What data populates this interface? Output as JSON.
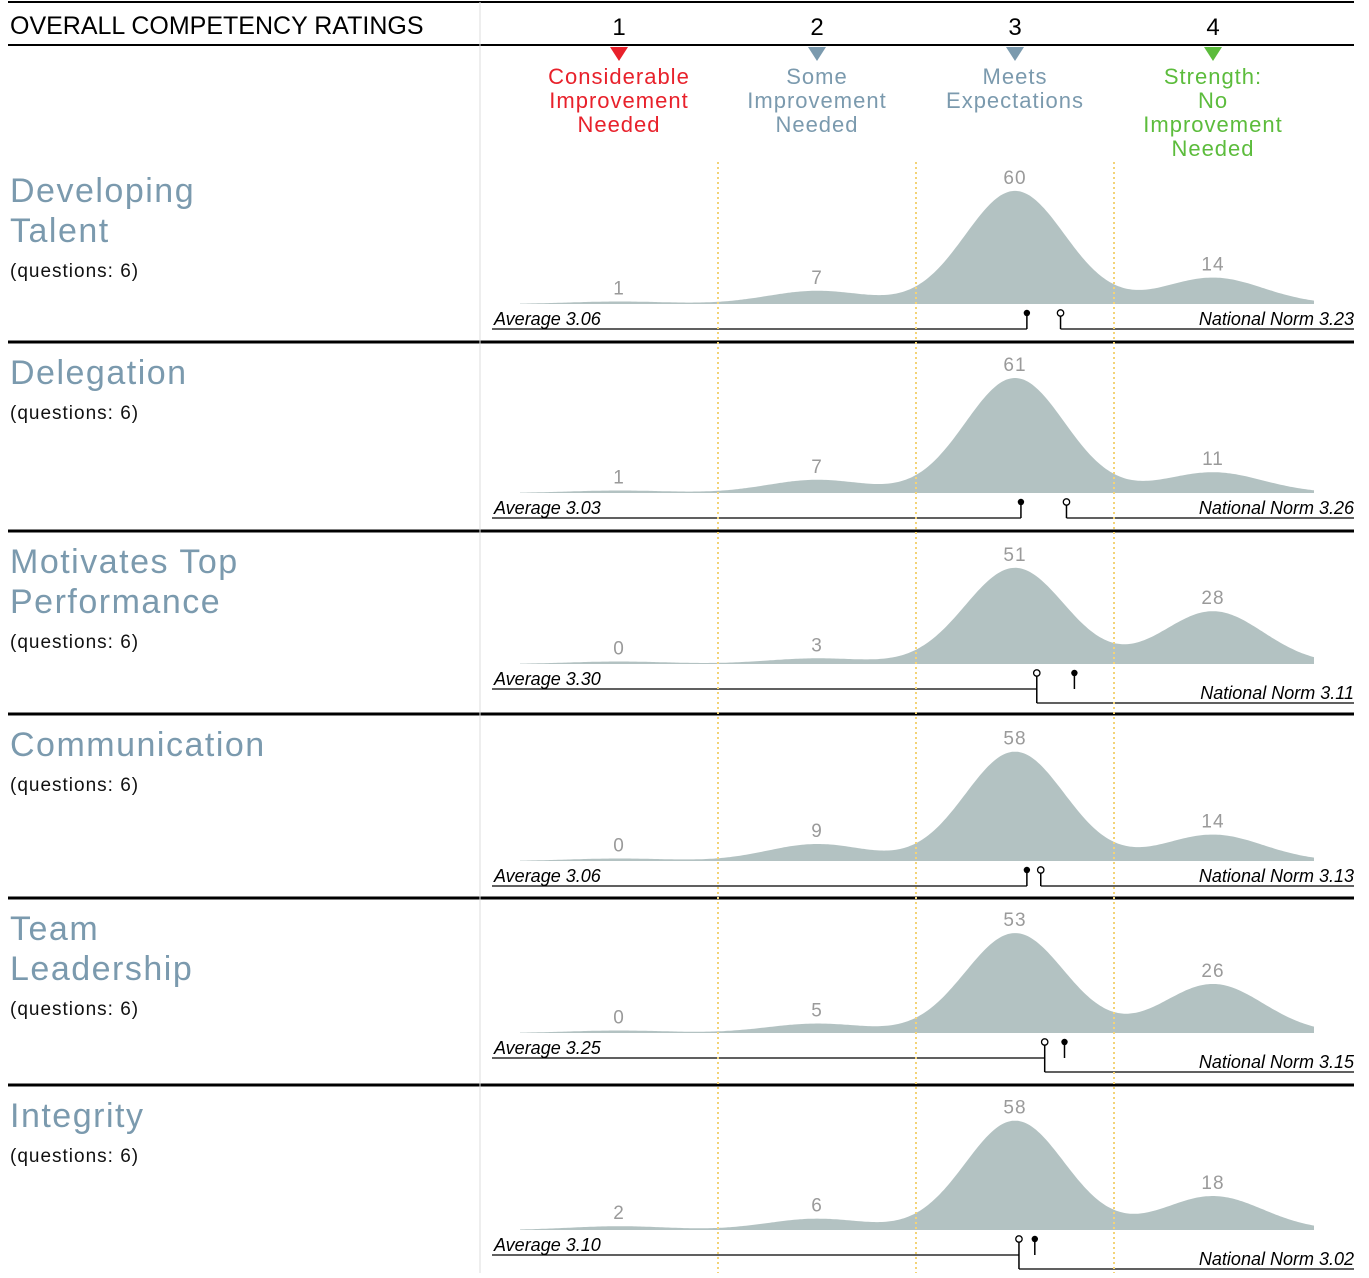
{
  "header": {
    "title": "OVERALL COMPETENCY RATINGS"
  },
  "colors": {
    "bump": "#b3c2c2",
    "label_gray": "#9a9a9a",
    "heading": "#7b9aae",
    "rule": "#000000",
    "divider": "#f3d377"
  },
  "scale": [
    {
      "num": "1",
      "lines": [
        "Considerable",
        "Improvement",
        "Needed"
      ],
      "color": "#e8212b"
    },
    {
      "num": "2",
      "lines": [
        "Some",
        "Improvement",
        "Needed"
      ],
      "color": "#7b9aae"
    },
    {
      "num": "3",
      "lines": [
        "Meets",
        "Expectations"
      ],
      "color": "#7b9aae"
    },
    {
      "num": "4",
      "lines": [
        "Strength:",
        "No",
        "Improvement",
        "Needed"
      ],
      "color": "#5cbc3c"
    }
  ],
  "chart_data": [
    {
      "type": "area",
      "title_lines": [
        "Developing",
        "Talent"
      ],
      "subtitle": "(questions: 6)",
      "categories": [
        "1",
        "2",
        "3",
        "4"
      ],
      "values": [
        1,
        7,
        60,
        14
      ],
      "average": 3.06,
      "average_label": "Average 3.06",
      "norm": 3.23,
      "norm_label": "National Norm 3.23"
    },
    {
      "type": "area",
      "title_lines": [
        "Delegation"
      ],
      "subtitle": "(questions: 6)",
      "categories": [
        "1",
        "2",
        "3",
        "4"
      ],
      "values": [
        1,
        7,
        61,
        11
      ],
      "average": 3.03,
      "average_label": "Average 3.03",
      "norm": 3.26,
      "norm_label": "National Norm 3.26"
    },
    {
      "type": "area",
      "title_lines": [
        "Motivates Top",
        "Performance"
      ],
      "subtitle": "(questions: 6)",
      "categories": [
        "1",
        "2",
        "3",
        "4"
      ],
      "values": [
        0,
        3,
        51,
        28
      ],
      "average": 3.3,
      "average_label": "Average 3.30",
      "norm": 3.11,
      "norm_label": "National Norm 3.11"
    },
    {
      "type": "area",
      "title_lines": [
        "Communication"
      ],
      "subtitle": "(questions: 6)",
      "categories": [
        "1",
        "2",
        "3",
        "4"
      ],
      "values": [
        0,
        9,
        58,
        14
      ],
      "average": 3.06,
      "average_label": "Average 3.06",
      "norm": 3.13,
      "norm_label": "National Norm 3.13"
    },
    {
      "type": "area",
      "title_lines": [
        "Team",
        "Leadership"
      ],
      "subtitle": "(questions: 6)",
      "categories": [
        "1",
        "2",
        "3",
        "4"
      ],
      "values": [
        0,
        5,
        53,
        26
      ],
      "average": 3.25,
      "average_label": "Average 3.25",
      "norm": 3.15,
      "norm_label": "National Norm 3.15"
    },
    {
      "type": "area",
      "title_lines": [
        "Integrity"
      ],
      "subtitle": "(questions: 6)",
      "categories": [
        "1",
        "2",
        "3",
        "4"
      ],
      "values": [
        2,
        6,
        58,
        18
      ],
      "average": 3.1,
      "average_label": "Average 3.10",
      "norm": 3.02,
      "norm_label": "National Norm 3.02"
    }
  ]
}
